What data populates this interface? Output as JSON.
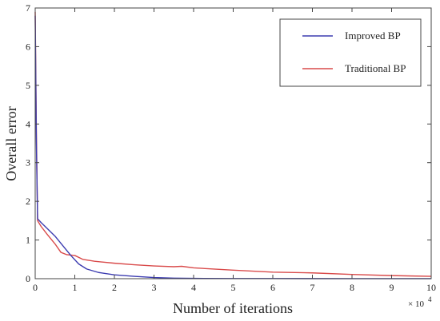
{
  "chart_data": {
    "type": "line",
    "xlabel": "Number of iterations",
    "ylabel": "Overall error",
    "x_multiplier_label": "× 10",
    "x_multiplier_exponent": "4",
    "xlim": [
      0,
      10
    ],
    "ylim": [
      0,
      7
    ],
    "xticks": [
      "0",
      "1",
      "2",
      "3",
      "4",
      "5",
      "6",
      "7",
      "8",
      "9",
      "10"
    ],
    "yticks": [
      "0",
      "1",
      "2",
      "3",
      "4",
      "5",
      "6",
      "7"
    ],
    "grid": false,
    "legend_position": "top-right",
    "series": [
      {
        "name": "Improved BP",
        "color": "#3b3bb0",
        "points": [
          [
            0,
            6.8
          ],
          [
            0.03,
            3.5
          ],
          [
            0.06,
            1.55
          ],
          [
            0.15,
            1.45
          ],
          [
            0.3,
            1.3
          ],
          [
            0.5,
            1.1
          ],
          [
            0.7,
            0.85
          ],
          [
            0.9,
            0.6
          ],
          [
            1.1,
            0.38
          ],
          [
            1.3,
            0.25
          ],
          [
            1.6,
            0.16
          ],
          [
            2.0,
            0.1
          ],
          [
            2.5,
            0.06
          ],
          [
            3.0,
            0.03
          ],
          [
            3.5,
            0.015
          ],
          [
            4.0,
            0.008
          ],
          [
            5.0,
            0.004
          ],
          [
            6.0,
            0.003
          ],
          [
            8.0,
            0.002
          ],
          [
            10.0,
            0.001
          ]
        ]
      },
      {
        "name": "Traditional BP",
        "color": "#d94a4a",
        "points": [
          [
            0,
            6.9
          ],
          [
            0.03,
            3.8
          ],
          [
            0.06,
            1.5
          ],
          [
            0.15,
            1.35
          ],
          [
            0.3,
            1.15
          ],
          [
            0.5,
            0.9
          ],
          [
            0.65,
            0.68
          ],
          [
            0.8,
            0.62
          ],
          [
            1.0,
            0.6
          ],
          [
            1.2,
            0.5
          ],
          [
            1.5,
            0.45
          ],
          [
            2.0,
            0.4
          ],
          [
            2.5,
            0.36
          ],
          [
            3.0,
            0.33
          ],
          [
            3.5,
            0.31
          ],
          [
            3.7,
            0.32
          ],
          [
            4.0,
            0.28
          ],
          [
            5.0,
            0.22
          ],
          [
            6.0,
            0.17
          ],
          [
            7.0,
            0.15
          ],
          [
            8.0,
            0.11
          ],
          [
            9.0,
            0.08
          ],
          [
            10.0,
            0.06
          ]
        ]
      }
    ]
  }
}
